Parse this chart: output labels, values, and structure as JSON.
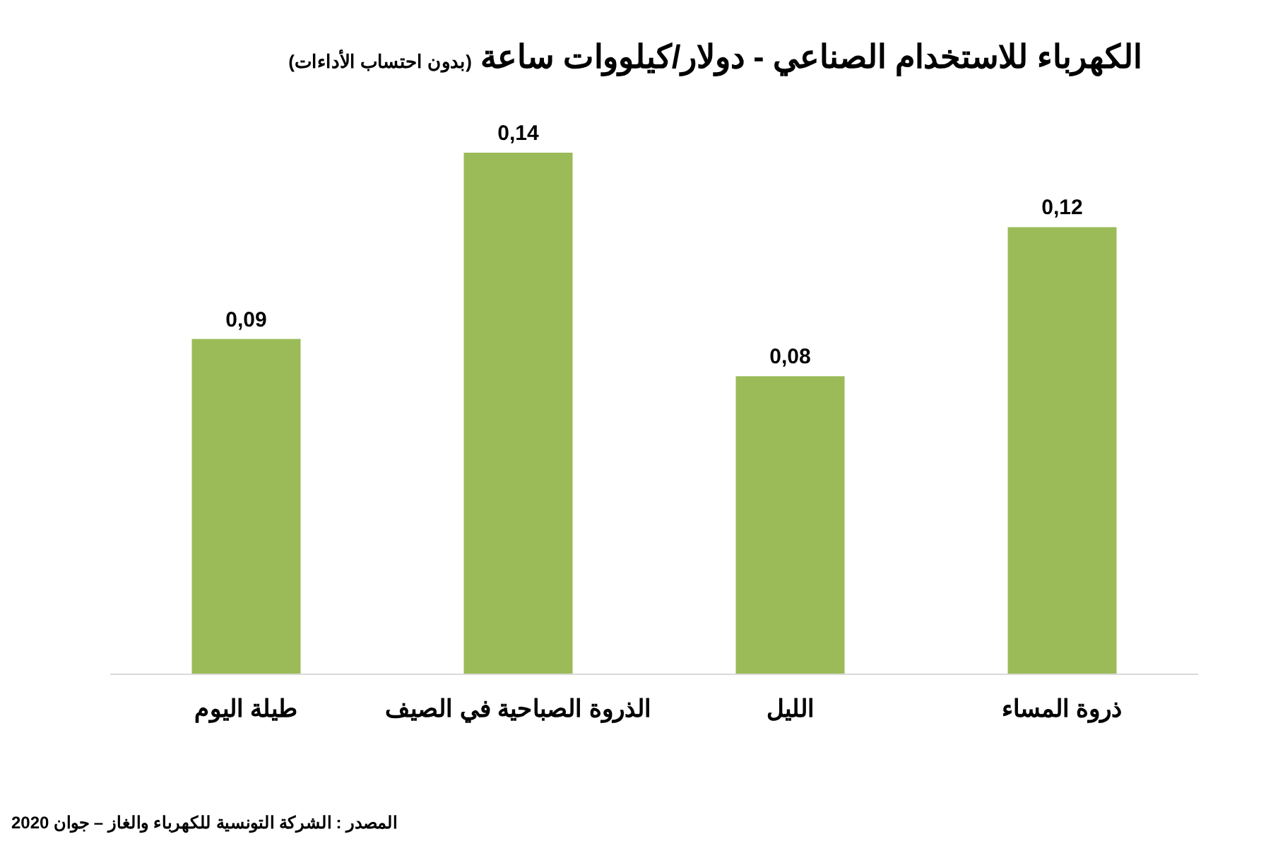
{
  "chart_data": {
    "type": "bar",
    "title": "الكهرباء للاستخدام الصناعي - دولار/كيلووات ساعة",
    "subtitle": "(بدون احتساب الأداءات)",
    "categories": [
      "طيلة اليوم",
      "الذروة الصباحية في الصيف",
      "الليل",
      "ذروة المساء"
    ],
    "values": [
      0.09,
      0.14,
      0.08,
      0.12
    ],
    "value_labels": [
      "0,09",
      "0,14",
      "0,08",
      "0,12"
    ],
    "color": "#9bbb59",
    "relative": false,
    "annotations": [
      "المصدر : الشركة التونسية للكهرباء والغاز – جوان 2020"
    ]
  }
}
